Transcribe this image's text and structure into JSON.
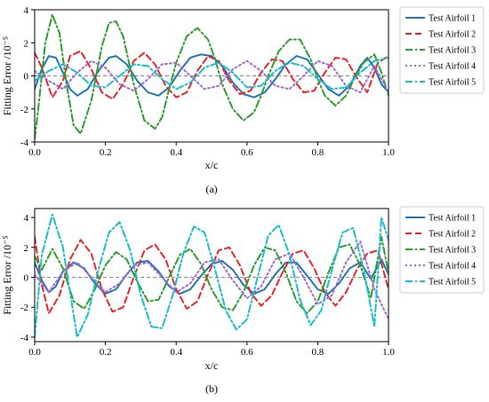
{
  "chart_data": [
    {
      "type": "line",
      "caption": "(a)",
      "xlabel": "x/c",
      "ylabel": "Fitting Error /10⁻⁵",
      "xlim": [
        0.0,
        1.0
      ],
      "ylim": [
        -4.0,
        4.0
      ],
      "xticks": [
        "0.0",
        "0.2",
        "0.4",
        "0.6",
        "0.8",
        "1.0"
      ],
      "yticks": [
        "-4",
        "-2",
        "0",
        "2",
        "4"
      ],
      "grid": false,
      "legend_position": "outside-right",
      "zero_line": true,
      "series": [
        {
          "name": "Test Airfoil 1",
          "color": "#1f77b4",
          "dash": "solid",
          "x": [
            0,
            0.02,
            0.04,
            0.06,
            0.08,
            0.1,
            0.12,
            0.15,
            0.18,
            0.21,
            0.23,
            0.26,
            0.29,
            0.32,
            0.35,
            0.38,
            0.41,
            0.44,
            0.47,
            0.5,
            0.53,
            0.56,
            0.59,
            0.62,
            0.65,
            0.68,
            0.71,
            0.74,
            0.77,
            0.8,
            0.83,
            0.86,
            0.89,
            0.92,
            0.94,
            0.96,
            0.98,
            1.0
          ],
          "y": [
            -0.8,
            0.4,
            1.2,
            1.1,
            0.2,
            -0.8,
            -1.2,
            -0.8,
            0.3,
            1.1,
            1.2,
            0.7,
            -0.3,
            -1.0,
            -1.2,
            -0.7,
            0.3,
            1.1,
            1.3,
            1.2,
            0.6,
            -0.4,
            -1.1,
            -1.3,
            -1.0,
            -0.2,
            0.7,
            1.2,
            1.0,
            0.1,
            -0.8,
            -1.2,
            -0.6,
            0.6,
            1.1,
            0.5,
            -0.5,
            -1.0
          ]
        },
        {
          "name": "Test Airfoil 2",
          "color": "#e8262b",
          "dash": "long-dash",
          "x": [
            0,
            0.02,
            0.05,
            0.08,
            0.1,
            0.13,
            0.16,
            0.19,
            0.22,
            0.25,
            0.28,
            0.31,
            0.34,
            0.37,
            0.4,
            0.43,
            0.46,
            0.49,
            0.52,
            0.55,
            0.58,
            0.61,
            0.64,
            0.67,
            0.7,
            0.73,
            0.76,
            0.79,
            0.82,
            0.85,
            0.88,
            0.91,
            0.94,
            0.97,
            1.0
          ],
          "y": [
            1.4,
            0.5,
            -1.3,
            -0.3,
            1.2,
            1.5,
            0.4,
            -1.0,
            -1.4,
            -0.5,
            0.9,
            1.4,
            0.7,
            -0.6,
            -1.3,
            -1.0,
            0.3,
            1.2,
            0.9,
            -0.3,
            -1.1,
            -0.9,
            0.2,
            1.0,
            0.9,
            -0.2,
            -1.0,
            -0.9,
            0.2,
            1.1,
            1.0,
            -0.1,
            -1.0,
            0.8,
            1.2
          ]
        },
        {
          "name": "Test Airfoil 3",
          "color": "#2ca02c",
          "dash": "dash-dot",
          "x": [
            0,
            0.01,
            0.03,
            0.05,
            0.07,
            0.09,
            0.11,
            0.13,
            0.16,
            0.19,
            0.21,
            0.23,
            0.25,
            0.28,
            0.31,
            0.34,
            0.36,
            0.38,
            0.4,
            0.43,
            0.46,
            0.49,
            0.51,
            0.53,
            0.56,
            0.59,
            0.62,
            0.64,
            0.66,
            0.69,
            0.72,
            0.75,
            0.78,
            0.8,
            0.82,
            0.85,
            0.88,
            0.9,
            0.93,
            0.96,
            0.98,
            1.0
          ],
          "y": [
            -3.8,
            -2.0,
            2.0,
            3.7,
            2.6,
            -0.5,
            -3.0,
            -3.5,
            -1.5,
            1.8,
            3.2,
            3.3,
            2.4,
            -0.5,
            -2.7,
            -3.2,
            -2.5,
            -0.8,
            0.8,
            2.4,
            2.9,
            2.2,
            1.0,
            -0.5,
            -2.0,
            -2.7,
            -2.2,
            -1.2,
            0.0,
            1.5,
            2.2,
            2.2,
            1.0,
            -0.2,
            -1.2,
            -1.8,
            -1.2,
            -0.3,
            0.8,
            1.3,
            0.2,
            -1.2
          ]
        },
        {
          "name": "Test Airfoil 4",
          "color": "#a36ad3",
          "dash": "dotted",
          "x": [
            0,
            0.04,
            0.08,
            0.12,
            0.16,
            0.2,
            0.24,
            0.28,
            0.32,
            0.36,
            0.4,
            0.44,
            0.48,
            0.52,
            0.56,
            0.6,
            0.64,
            0.68,
            0.72,
            0.76,
            0.8,
            0.84,
            0.88,
            0.92,
            0.96,
            1.0
          ],
          "y": [
            0.3,
            -0.3,
            -0.8,
            0.2,
            0.9,
            0.5,
            -0.5,
            -0.9,
            -0.2,
            0.7,
            0.8,
            0.0,
            -0.8,
            -0.6,
            0.4,
            0.9,
            0.3,
            -0.6,
            -0.8,
            0.0,
            0.9,
            0.6,
            -0.6,
            -1.0,
            0.6,
            -1.0
          ]
        },
        {
          "name": "Test Airfoil 5",
          "color": "#17becf",
          "dash": "dash-dot",
          "x": [
            0,
            0.04,
            0.08,
            0.12,
            0.16,
            0.2,
            0.24,
            0.28,
            0.32,
            0.36,
            0.4,
            0.44,
            0.48,
            0.52,
            0.56,
            0.6,
            0.64,
            0.68,
            0.72,
            0.76,
            0.8,
            0.84,
            0.88,
            0.92,
            0.96,
            1.0
          ],
          "y": [
            -0.3,
            0.3,
            0.7,
            0.2,
            -0.6,
            -0.7,
            0.0,
            0.7,
            0.6,
            -0.2,
            -0.8,
            -0.4,
            0.5,
            0.8,
            0.2,
            -0.7,
            -0.6,
            0.3,
            0.8,
            0.6,
            -0.2,
            -0.8,
            -0.7,
            0.2,
            0.9,
            1.1
          ]
        }
      ]
    },
    {
      "type": "line",
      "caption": "(b)",
      "xlabel": "x/c",
      "ylabel": "Fitting Error /10⁻⁵",
      "xlim": [
        0.0,
        1.0
      ],
      "ylim": [
        -4.3,
        4.6
      ],
      "xticks": [
        "0.0",
        "0.2",
        "0.4",
        "0.6",
        "0.8",
        "1.0"
      ],
      "yticks": [
        "-4",
        "-2",
        "0",
        "2",
        "4"
      ],
      "grid": false,
      "legend_position": "outside-right",
      "zero_line": true,
      "series": [
        {
          "name": "Test Airfoil 1",
          "color": "#1f77b4",
          "dash": "solid",
          "x": [
            0,
            0.02,
            0.04,
            0.06,
            0.08,
            0.11,
            0.14,
            0.17,
            0.2,
            0.23,
            0.26,
            0.29,
            0.32,
            0.35,
            0.38,
            0.41,
            0.44,
            0.47,
            0.5,
            0.53,
            0.56,
            0.59,
            0.62,
            0.65,
            0.68,
            0.71,
            0.74,
            0.77,
            0.8,
            0.83,
            0.86,
            0.89,
            0.92,
            0.95,
            0.98,
            1.0
          ],
          "y": [
            1.0,
            -0.2,
            -1.0,
            -0.6,
            0.4,
            1.0,
            0.6,
            -0.4,
            -1.1,
            -0.8,
            0.2,
            1.0,
            1.1,
            0.4,
            -0.6,
            -1.1,
            -0.8,
            0.1,
            0.9,
            1.1,
            0.5,
            -0.5,
            -1.1,
            -0.8,
            0.2,
            1.0,
            1.0,
            0.1,
            -0.8,
            -1.1,
            -0.4,
            0.6,
            1.0,
            -0.1,
            1.2,
            0.2
          ]
        },
        {
          "name": "Test Airfoil 2",
          "color": "#e8262b",
          "dash": "long-dash",
          "x": [
            0,
            0.02,
            0.04,
            0.07,
            0.1,
            0.13,
            0.16,
            0.19,
            0.22,
            0.25,
            0.28,
            0.31,
            0.34,
            0.37,
            0.4,
            0.43,
            0.46,
            0.49,
            0.52,
            0.55,
            0.58,
            0.61,
            0.64,
            0.67,
            0.7,
            0.73,
            0.76,
            0.79,
            0.82,
            0.85,
            0.88,
            0.91,
            0.94,
            0.97,
            1.0
          ],
          "y": [
            2.7,
            -0.5,
            -2.4,
            -1.2,
            1.2,
            2.5,
            1.6,
            -0.8,
            -2.3,
            -2.0,
            0.0,
            1.8,
            2.2,
            1.2,
            -0.8,
            -2.1,
            -1.6,
            0.2,
            1.8,
            2.0,
            0.8,
            -1.0,
            -1.9,
            -1.2,
            0.3,
            1.6,
            1.8,
            0.6,
            -1.0,
            -1.9,
            -1.0,
            0.5,
            1.6,
            1.8,
            -0.8
          ]
        },
        {
          "name": "Test Airfoil 3",
          "color": "#2ca02c",
          "dash": "dash-dot",
          "x": [
            0,
            0.02,
            0.05,
            0.08,
            0.11,
            0.14,
            0.17,
            0.2,
            0.23,
            0.26,
            0.29,
            0.32,
            0.35,
            0.38,
            0.41,
            0.44,
            0.47,
            0.5,
            0.53,
            0.56,
            0.59,
            0.62,
            0.65,
            0.68,
            0.71,
            0.74,
            0.77,
            0.8,
            0.83,
            0.86,
            0.89,
            0.92,
            0.95,
            0.98,
            1.0
          ],
          "y": [
            1.4,
            0.5,
            1.9,
            0.6,
            -1.6,
            -2.1,
            -0.8,
            0.8,
            1.7,
            1.2,
            -0.3,
            -1.6,
            -1.5,
            0.0,
            1.5,
            1.9,
            0.9,
            -0.8,
            -2.0,
            -2.2,
            -1.0,
            0.8,
            2.0,
            1.8,
            0.3,
            -1.6,
            -2.4,
            -1.6,
            0.3,
            2.0,
            2.2,
            0.8,
            -1.4,
            2.7,
            0.3
          ]
        },
        {
          "name": "Test Airfoil 4",
          "color": "#a36ad3",
          "dash": "dotted",
          "x": [
            0,
            0.04,
            0.08,
            0.12,
            0.16,
            0.2,
            0.24,
            0.28,
            0.32,
            0.36,
            0.4,
            0.44,
            0.48,
            0.52,
            0.56,
            0.6,
            0.64,
            0.68,
            0.72,
            0.76,
            0.8,
            0.84,
            0.88,
            0.92,
            0.96,
            1.0
          ],
          "y": [
            0.2,
            -1.0,
            0.4,
            1.0,
            0.0,
            -1.0,
            -0.4,
            0.8,
            1.0,
            0.0,
            -1.0,
            -0.4,
            1.0,
            1.2,
            -0.2,
            -1.4,
            -0.6,
            1.2,
            1.6,
            0.0,
            -1.8,
            -1.2,
            1.0,
            2.4,
            -0.8,
            -2.8
          ]
        },
        {
          "name": "Test Airfoil 5",
          "color": "#17becf",
          "dash": "dash-dot",
          "x": [
            0,
            0.02,
            0.05,
            0.08,
            0.12,
            0.15,
            0.18,
            0.21,
            0.24,
            0.27,
            0.3,
            0.33,
            0.36,
            0.39,
            0.42,
            0.45,
            0.48,
            0.51,
            0.54,
            0.57,
            0.6,
            0.63,
            0.66,
            0.69,
            0.72,
            0.75,
            0.78,
            0.81,
            0.84,
            0.87,
            0.9,
            0.93,
            0.96,
            0.98,
            1.0
          ],
          "y": [
            -4.0,
            1.5,
            4.2,
            2.0,
            -4.0,
            -2.5,
            0.5,
            3.0,
            3.7,
            1.8,
            -1.2,
            -3.3,
            -3.4,
            -1.2,
            1.6,
            3.4,
            3.0,
            0.5,
            -2.2,
            -3.5,
            -2.8,
            0.0,
            2.8,
            3.5,
            1.5,
            -1.5,
            -3.2,
            -2.2,
            0.5,
            3.0,
            3.3,
            0.5,
            -3.3,
            4.0,
            2.5
          ]
        }
      ]
    }
  ]
}
